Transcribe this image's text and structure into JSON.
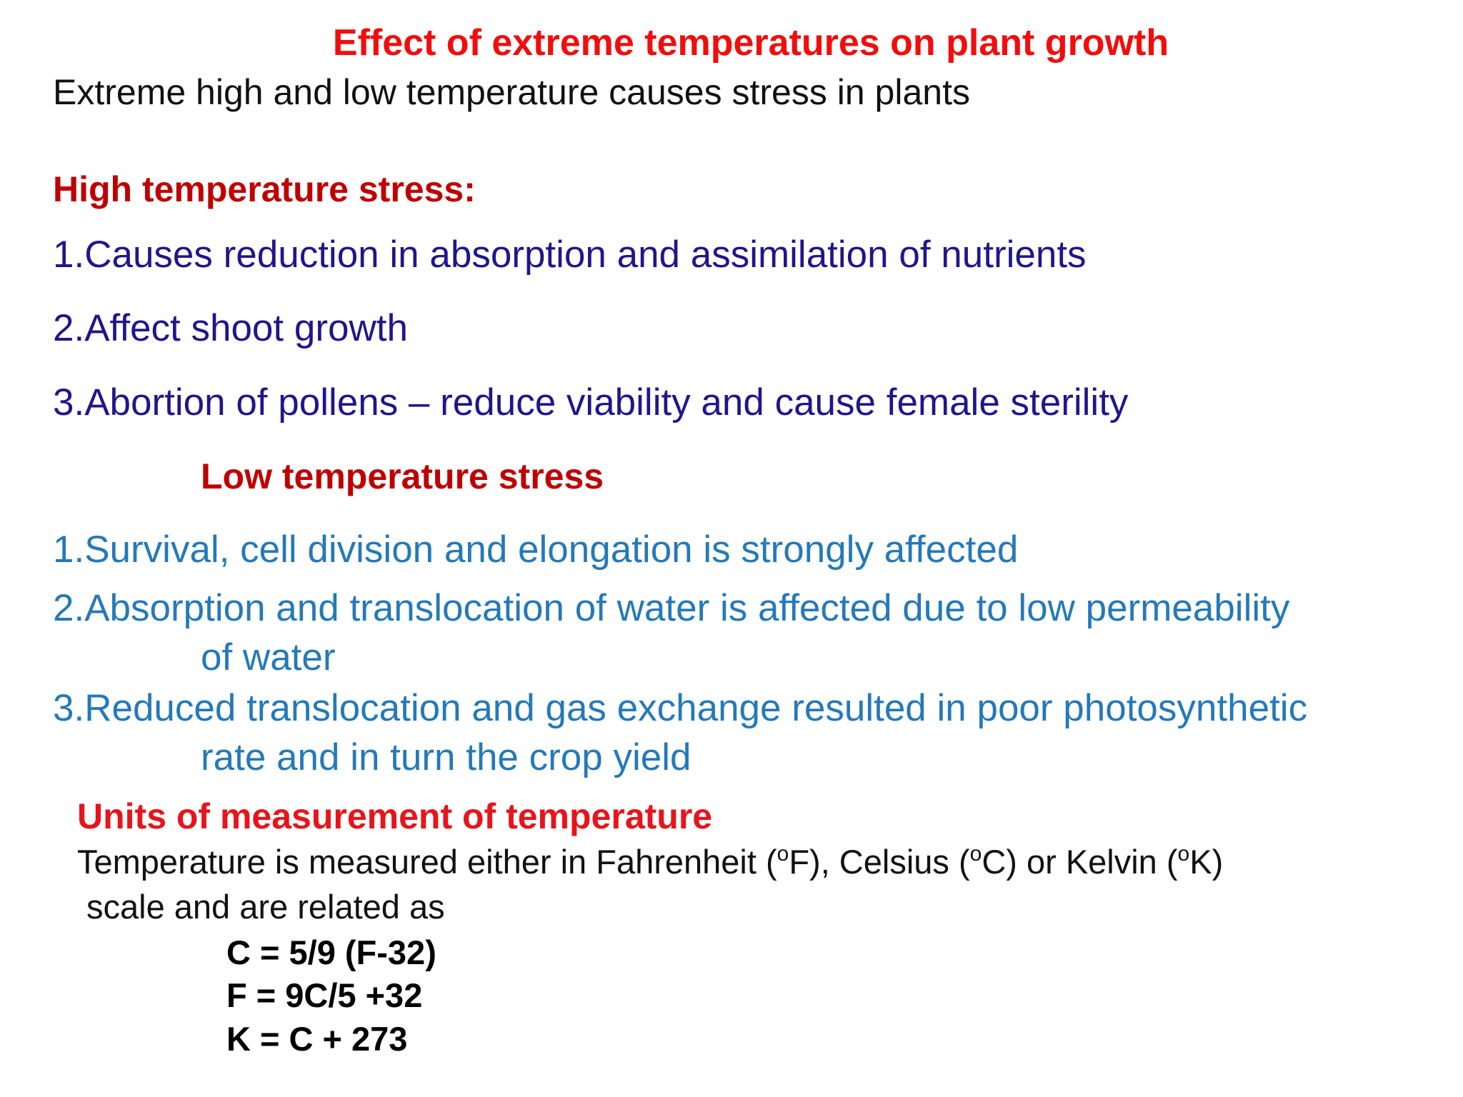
{
  "title": "Effect of extreme temperatures on plant growth",
  "subtitle": "Extreme high and low temperature causes stress in plants",
  "high_temperature": {
    "heading": "High temperature stress:",
    "items": [
      "1.Causes reduction in absorption and assimilation of nutrients",
      "2.Affect shoot growth",
      "3.Abortion of pollens – reduce viability and cause female sterility"
    ]
  },
  "low_temperature": {
    "heading": "Low temperature stress",
    "items": [
      [
        "1.Survival, cell division and elongation is strongly affected"
      ],
      [
        "2.Absorption and translocation of water is affected due to low permeability",
        "of water"
      ],
      [
        "3.Reduced translocation and gas exchange resulted in poor photosynthetic",
        "rate and in turn the crop yield"
      ]
    ]
  },
  "units": {
    "heading": "Units of measurement of temperature",
    "description": [
      [
        "Temperature is measured either in Fahrenheit (",
        "o",
        "F), Celsius (",
        "o",
        "C) or Kelvin (",
        "o",
        "K)"
      ],
      [
        "scale and are related as"
      ]
    ],
    "formulas": [
      "C = 5/9 (F-32)",
      "F = 9C/5 +32",
      "K = C + 273"
    ]
  }
}
